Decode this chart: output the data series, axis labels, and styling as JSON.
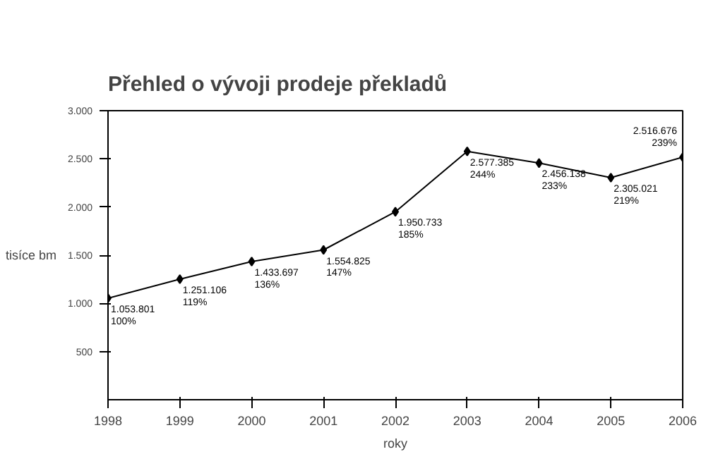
{
  "chart_data": {
    "type": "line",
    "title": "Přehled o vývoji prodeje překladů",
    "xlabel": "roky",
    "ylabel": "tisíce bm",
    "x": [
      1998,
      1999,
      2000,
      2001,
      2002,
      2003,
      2004,
      2005,
      2006
    ],
    "series": [
      {
        "color": "#000000",
        "values": [
          1053.801,
          1251.106,
          1433.697,
          1554.825,
          1950.733,
          2577.385,
          2456.138,
          2305.021,
          2516.676
        ]
      }
    ],
    "annotations": [
      {
        "text": "1.053.801\n100%",
        "x": 1998,
        "y": 1053.801
      },
      {
        "text": "1.251.106\n119%",
        "x": 1999,
        "y": 1251.106
      },
      {
        "text": "1.433.697\n136%",
        "x": 2000,
        "y": 1433.697
      },
      {
        "text": "1.554.825\n147%",
        "x": 2001,
        "y": 1554.825
      },
      {
        "text": "1.950.733\n185%",
        "x": 2002,
        "y": 1950.733
      },
      {
        "text": "2.577.385\n244%",
        "x": 2003,
        "y": 2577.385
      },
      {
        "text": "2.456.138\n233%",
        "x": 2004,
        "y": 2456.138
      },
      {
        "text": "2.305.021\n219%",
        "x": 2005,
        "y": 2305.021
      },
      {
        "text": "2.516.676\n239%",
        "x": 2006,
        "y": 2516.676
      }
    ],
    "xlim": [
      1998,
      2006
    ],
    "xticks": [
      1998,
      1999,
      2000,
      2001,
      2002,
      2003,
      2004,
      2005,
      2006
    ],
    "ylim": [
      0,
      3000
    ],
    "yticks": [
      {
        "value": 500,
        "label": "500"
      },
      {
        "value": 1000,
        "label": "1.000"
      },
      {
        "value": 1500,
        "label": "1.500"
      },
      {
        "value": 2000,
        "label": "2.000"
      },
      {
        "value": 2500,
        "label": "2.500"
      },
      {
        "value": 3000,
        "label": "3.000"
      }
    ],
    "grid": false,
    "marker": "diamond",
    "line_style": "solid"
  }
}
